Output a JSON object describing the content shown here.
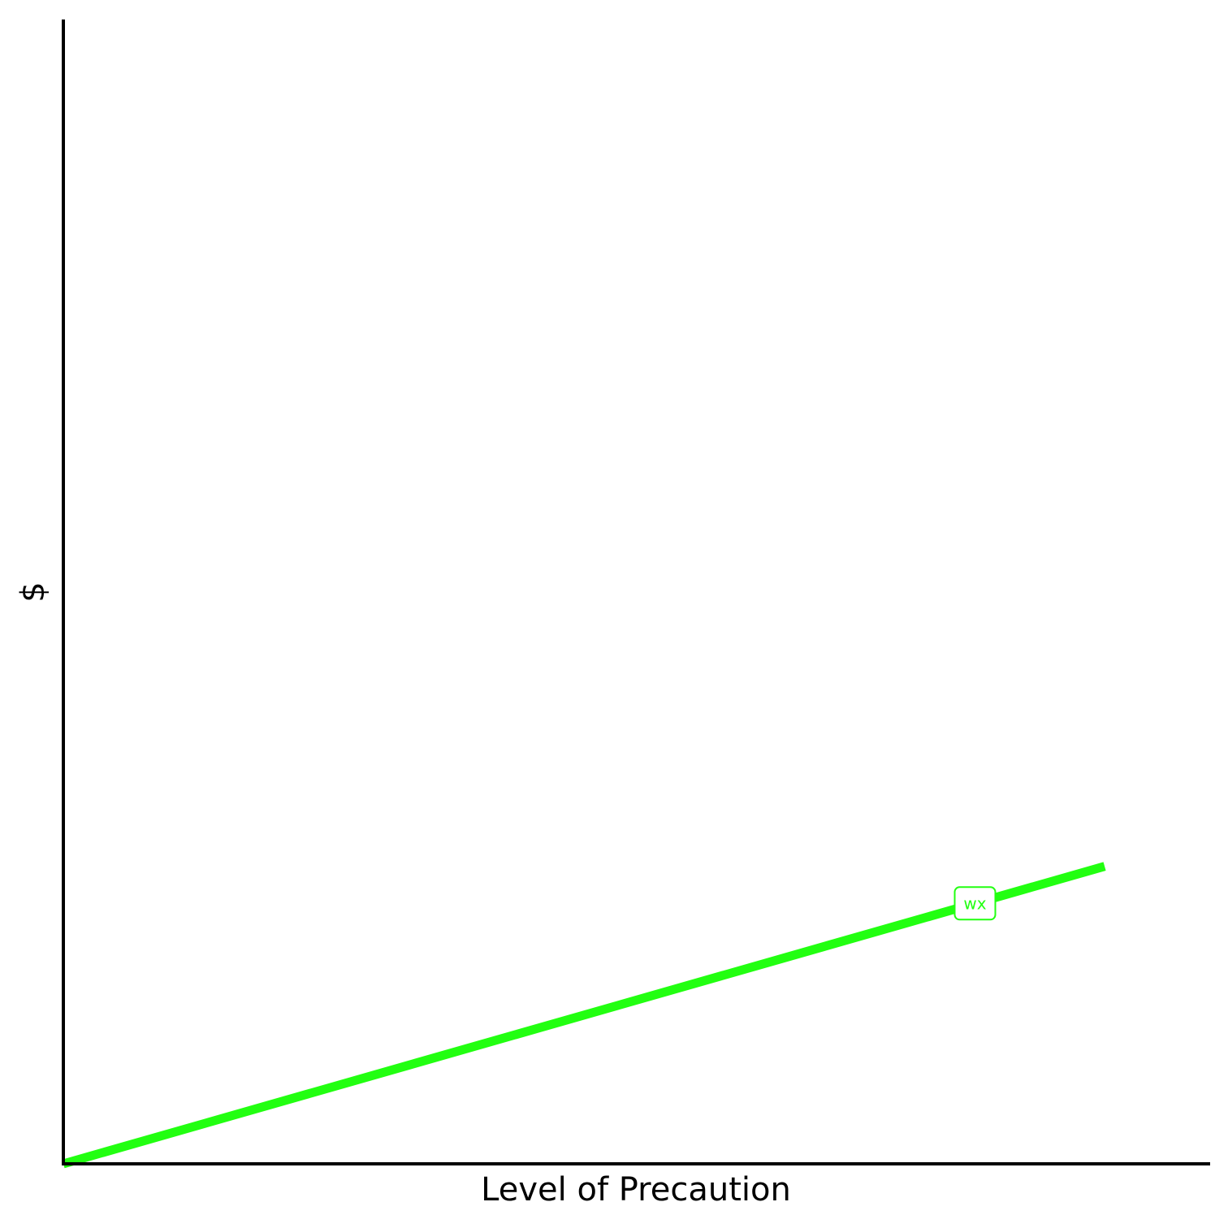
{
  "chart_data": {
    "type": "line",
    "title": "",
    "xlabel": "Level of Precaution",
    "ylabel": "$",
    "xlim": [
      0,
      1
    ],
    "ylim": [
      0,
      1
    ],
    "grid": false,
    "legend": "none",
    "series": [
      {
        "label": "wx",
        "color": "#22ff11",
        "x": [
          0,
          0.908
        ],
        "y": [
          0,
          0.26
        ],
        "label_at_x": 0.795
      }
    ]
  }
}
